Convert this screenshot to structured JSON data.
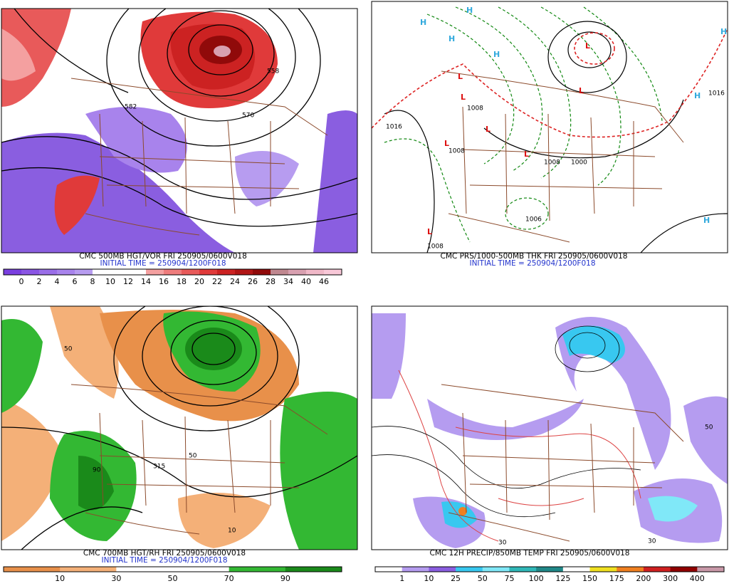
{
  "panels": [
    {
      "caption": "CMC 500MB HGT/VOR FRI 250905/0600V018",
      "initial_time": "INITIAL TIME = 250904/1200F018",
      "contour_labels": [
        "582",
        "570",
        "558"
      ],
      "colorbar": {
        "labels": [
          0,
          2,
          4,
          6,
          8,
          10,
          12,
          14,
          16,
          18,
          20,
          22,
          24,
          26,
          28,
          34,
          40,
          46
        ],
        "colors": [
          "#7a3fe0",
          "#8a55e4",
          "#9a6ee8",
          "#a883ec",
          "#b79cf0",
          "#ffffff",
          "#ffffff",
          "#ffffff",
          "#f4a0a0",
          "#ee7c7c",
          "#e85a5a",
          "#e03a3a",
          "#cc2222",
          "#b01515",
          "#900a0a",
          "#c08890",
          "#d8a0b0",
          "#f0b8c8",
          "#f8c8d8"
        ]
      }
    },
    {
      "caption": "CMC PRS/1000-500MB THK FRI 250905/0600V018",
      "initial_time": "INITIAL TIME = 250904/1200F018",
      "centers": [
        "H",
        "H",
        "H",
        "H",
        "H",
        "H",
        "H",
        "L",
        "L",
        "L",
        "L",
        "L",
        "L",
        "L",
        "L"
      ],
      "isobar_labels": [
        "1016",
        "1008",
        "1008",
        "1008",
        "1000",
        "1016",
        "1006",
        "1008"
      ]
    },
    {
      "caption": "CMC 700MB HGT/RH FRI 250905/0600V018",
      "initial_time": "INITIAL TIME = 250904/1200F018",
      "contour_labels": [
        "50",
        "10",
        "90",
        "315",
        "50"
      ],
      "colorbar": {
        "labels": [
          10,
          30,
          50,
          70,
          90
        ],
        "colors": [
          "#e8904a",
          "#f4b078",
          "#ffffff",
          "#ffffff",
          "#33b833",
          "#1a8a1a"
        ]
      }
    },
    {
      "caption": "CMC 12H PRECIP/850MB TEMP FRI 250905/0600V018",
      "contour_labels": [
        "30",
        "30",
        "50"
      ],
      "colorbar": {
        "labels": [
          1,
          10,
          25,
          50,
          75,
          100,
          125,
          150,
          175,
          200,
          300,
          400
        ],
        "colors": [
          "#ffffff",
          "#b59cf0",
          "#8a5ee0",
          "#38c8f0",
          "#80e8f8",
          "#30b8b8",
          "#208888",
          "#ffffff",
          "#f0e020",
          "#f08020",
          "#d02020",
          "#900000",
          "#c898a8"
        ]
      }
    }
  ]
}
